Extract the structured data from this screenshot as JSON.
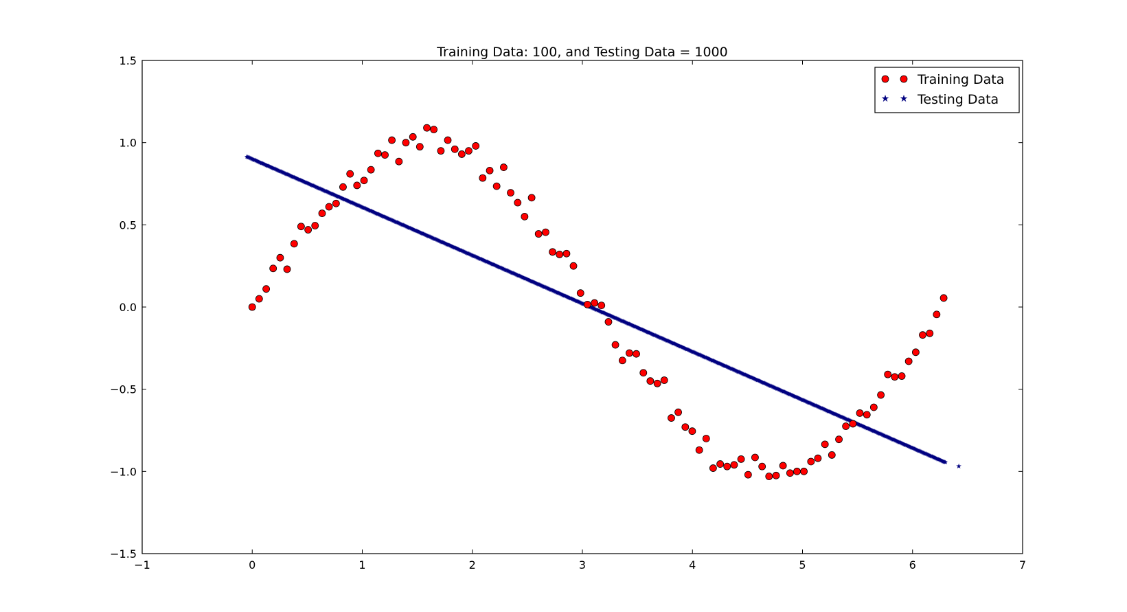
{
  "chart_data": {
    "type": "scatter",
    "title": "Training Data: 100, and Testing Data = 1000",
    "xlabel": "",
    "ylabel": "",
    "xlim": [
      -1,
      7
    ],
    "ylim": [
      -1.5,
      1.5
    ],
    "grid": false,
    "legend_position": "top-right",
    "x_ticks": [
      -1,
      0,
      1,
      2,
      3,
      4,
      5,
      6,
      7
    ],
    "x_tick_labels": [
      "−1",
      "0",
      "1",
      "2",
      "3",
      "4",
      "5",
      "6",
      "7"
    ],
    "y_ticks": [
      -1.5,
      -1.0,
      -0.5,
      0.0,
      0.5,
      1.0,
      1.5
    ],
    "y_tick_labels": [
      "−1.5",
      "−1.0",
      "−0.5",
      "0.0",
      "0.5",
      "1.0",
      "1.5"
    ],
    "series": [
      {
        "name": "Training Data",
        "marker": "circle",
        "color": "#ff0000",
        "x": [
          0.0,
          0.063,
          0.127,
          0.19,
          0.254,
          0.317,
          0.381,
          0.444,
          0.508,
          0.571,
          0.635,
          0.698,
          0.762,
          0.825,
          0.889,
          0.952,
          1.016,
          1.079,
          1.143,
          1.206,
          1.269,
          1.333,
          1.396,
          1.46,
          1.523,
          1.587,
          1.65,
          1.714,
          1.777,
          1.841,
          1.904,
          1.967,
          2.031,
          2.094,
          2.158,
          2.221,
          2.285,
          2.348,
          2.412,
          2.475,
          2.539,
          2.602,
          2.666,
          2.729,
          2.792,
          2.856,
          2.919,
          2.983,
          3.046,
          3.11,
          3.173,
          3.237,
          3.3,
          3.364,
          3.427,
          3.49,
          3.554,
          3.617,
          3.681,
          3.744,
          3.808,
          3.871,
          3.935,
          3.998,
          4.062,
          4.125,
          4.188,
          4.252,
          4.315,
          4.379,
          4.442,
          4.506,
          4.569,
          4.633,
          4.696,
          4.76,
          4.823,
          4.887,
          4.95,
          5.013,
          5.077,
          5.14,
          5.204,
          5.267,
          5.331,
          5.394,
          5.458,
          5.521,
          5.585,
          5.648,
          5.712,
          5.775,
          5.838,
          5.902,
          5.965,
          6.029,
          6.092,
          6.156,
          6.219,
          6.283
        ],
        "y": [
          0.0,
          0.05,
          0.11,
          0.235,
          0.3,
          0.23,
          0.385,
          0.49,
          0.47,
          0.495,
          0.57,
          0.61,
          0.63,
          0.73,
          0.81,
          0.74,
          0.77,
          0.835,
          0.935,
          0.925,
          1.015,
          0.885,
          1.0,
          1.035,
          0.975,
          1.09,
          1.08,
          0.95,
          1.015,
          0.96,
          0.93,
          0.95,
          0.98,
          0.785,
          0.83,
          0.735,
          0.85,
          0.695,
          0.635,
          0.55,
          0.665,
          0.445,
          0.455,
          0.335,
          0.32,
          0.325,
          0.25,
          0.085,
          0.015,
          0.025,
          0.01,
          -0.09,
          -0.23,
          -0.325,
          -0.28,
          -0.285,
          -0.4,
          -0.45,
          -0.465,
          -0.445,
          -0.675,
          -0.64,
          -0.73,
          -0.755,
          -0.87,
          -0.8,
          -0.98,
          -0.955,
          -0.97,
          -0.96,
          -0.925,
          -1.02,
          -0.915,
          -0.97,
          -1.03,
          -1.025,
          -0.965,
          -1.01,
          -1.0,
          -1.0,
          -0.94,
          -0.92,
          -0.835,
          -0.9,
          -0.805,
          -0.725,
          -0.71,
          -0.645,
          -0.655,
          -0.61,
          -0.535,
          -0.41,
          -0.425,
          -0.42,
          -0.33,
          -0.275,
          -0.17,
          -0.16,
          -0.045,
          0.055
        ]
      },
      {
        "name": "Testing Data",
        "marker": "star",
        "color": "#000080",
        "x_range": [
          -0.05,
          6.3
        ],
        "line": {
          "slope": -0.293,
          "intercept": 0.905
        },
        "count": 1000,
        "outlier": {
          "x": 6.42,
          "y": -0.965
        }
      }
    ]
  }
}
